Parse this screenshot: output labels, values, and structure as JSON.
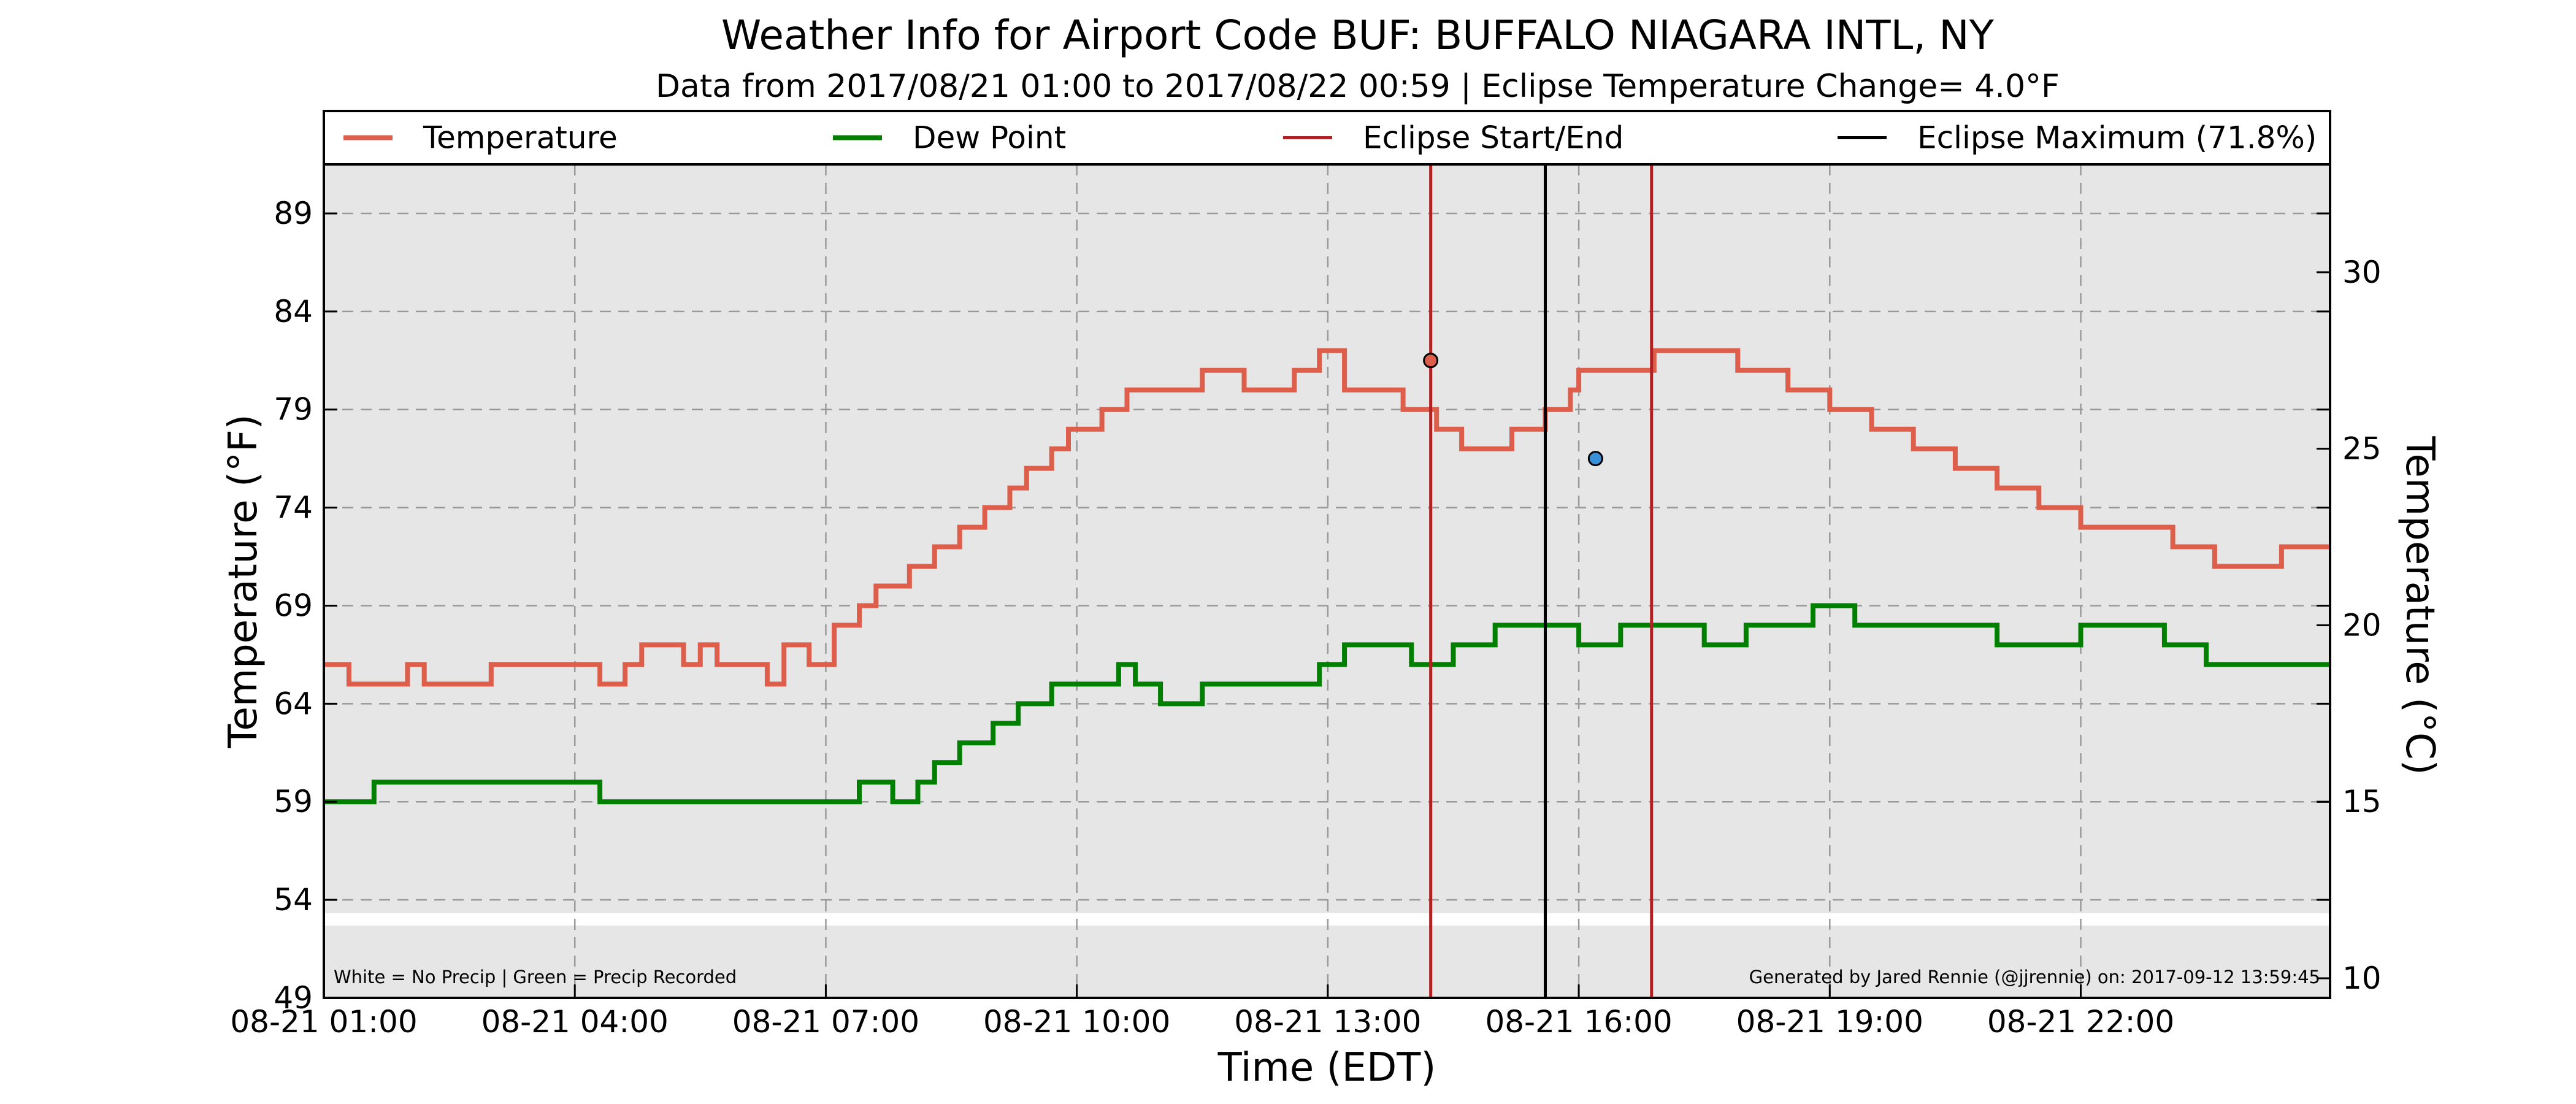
{
  "chart_data": {
    "type": "line",
    "title": "Weather Info for Airport Code BUF: BUFFALO NIAGARA INTL, NY",
    "subtitle": "Data from 2017/08/21 01:00 to 2017/08/22 00:59 | Eclipse Temperature Change= 4.0°F",
    "xlabel": "Time (EDT)",
    "ylabel_left": "Temperature (°F)",
    "ylabel_right": "Temperature (°C)",
    "x_unit": "hours",
    "xlim": [
      1.0,
      24.98
    ],
    "ylim": [
      49,
      91.5
    ],
    "x_ticks": [
      {
        "x": 1,
        "label": "08-21 01:00"
      },
      {
        "x": 4,
        "label": "08-21 04:00"
      },
      {
        "x": 7,
        "label": "08-21 07:00"
      },
      {
        "x": 10,
        "label": "08-21 10:00"
      },
      {
        "x": 13,
        "label": "08-21 13:00"
      },
      {
        "x": 16,
        "label": "08-21 16:00"
      },
      {
        "x": 19,
        "label": "08-21 19:00"
      },
      {
        "x": 22,
        "label": "08-21 22:00"
      }
    ],
    "y_ticks_left": [
      49,
      54,
      59,
      64,
      69,
      74,
      79,
      84,
      89
    ],
    "y_ticks_right": [
      10,
      15,
      20,
      25,
      30
    ],
    "grid": true,
    "legend_position": "top",
    "series": [
      {
        "name": "Temperature",
        "color": "#dc5e4b",
        "points": [
          [
            1.0,
            66
          ],
          [
            1.3,
            65
          ],
          [
            2.0,
            66
          ],
          [
            2.2,
            65
          ],
          [
            3.0,
            66
          ],
          [
            4.2,
            66
          ],
          [
            4.3,
            65
          ],
          [
            4.6,
            66
          ],
          [
            4.8,
            67
          ],
          [
            5.3,
            66
          ],
          [
            5.5,
            67
          ],
          [
            5.7,
            66
          ],
          [
            6.3,
            65
          ],
          [
            6.5,
            67
          ],
          [
            6.8,
            66
          ],
          [
            7.1,
            68
          ],
          [
            7.4,
            69
          ],
          [
            7.6,
            70
          ],
          [
            8.0,
            71
          ],
          [
            8.3,
            72
          ],
          [
            8.6,
            73
          ],
          [
            8.9,
            74
          ],
          [
            9.2,
            75
          ],
          [
            9.4,
            76
          ],
          [
            9.7,
            77
          ],
          [
            9.9,
            78
          ],
          [
            10.3,
            79
          ],
          [
            10.6,
            80
          ],
          [
            11.0,
            80
          ],
          [
            11.5,
            81
          ],
          [
            12.0,
            80
          ],
          [
            12.6,
            81
          ],
          [
            12.9,
            82
          ],
          [
            13.2,
            80
          ],
          [
            13.6,
            80
          ],
          [
            13.9,
            79
          ],
          [
            14.3,
            78
          ],
          [
            14.6,
            77
          ],
          [
            15.0,
            77
          ],
          [
            15.2,
            78
          ],
          [
            15.6,
            79
          ],
          [
            15.9,
            80
          ],
          [
            16.0,
            81
          ],
          [
            16.5,
            81
          ],
          [
            16.9,
            82
          ],
          [
            17.5,
            82
          ],
          [
            17.9,
            81
          ],
          [
            18.5,
            80
          ],
          [
            19.0,
            79
          ],
          [
            19.5,
            78
          ],
          [
            20.0,
            77
          ],
          [
            20.5,
            76
          ],
          [
            21.0,
            75
          ],
          [
            21.5,
            74
          ],
          [
            22.0,
            73
          ],
          [
            22.6,
            73
          ],
          [
            23.1,
            72
          ],
          [
            23.6,
            71
          ],
          [
            24.4,
            72
          ],
          [
            24.98,
            72
          ]
        ]
      },
      {
        "name": "Dew Point",
        "color": "#007f00",
        "points": [
          [
            1.0,
            59
          ],
          [
            1.6,
            60
          ],
          [
            4.2,
            60
          ],
          [
            4.3,
            59
          ],
          [
            7.0,
            59
          ],
          [
            7.4,
            60
          ],
          [
            7.8,
            59
          ],
          [
            8.1,
            60
          ],
          [
            8.3,
            61
          ],
          [
            8.6,
            62
          ],
          [
            9.0,
            63
          ],
          [
            9.3,
            64
          ],
          [
            9.7,
            65
          ],
          [
            10.0,
            65
          ],
          [
            10.5,
            66
          ],
          [
            10.7,
            65
          ],
          [
            11.0,
            64
          ],
          [
            11.5,
            65
          ],
          [
            12.5,
            65
          ],
          [
            12.9,
            66
          ],
          [
            13.2,
            67
          ],
          [
            14.0,
            66
          ],
          [
            14.5,
            67
          ],
          [
            15.0,
            68
          ],
          [
            15.5,
            68
          ],
          [
            16.0,
            67
          ],
          [
            16.5,
            68
          ],
          [
            17.0,
            68
          ],
          [
            17.5,
            67
          ],
          [
            18.0,
            68
          ],
          [
            18.8,
            69
          ],
          [
            19.3,
            68
          ],
          [
            20.0,
            68
          ],
          [
            21.0,
            67
          ],
          [
            22.0,
            68
          ],
          [
            23.0,
            67
          ],
          [
            23.5,
            66
          ],
          [
            24.98,
            66
          ]
        ]
      }
    ],
    "eclipse_start_end": {
      "name": "Eclipse Start/End",
      "color": "#b22222",
      "x": [
        14.23,
        16.87
      ]
    },
    "eclipse_maximum": {
      "name": "Eclipse Maximum (71.8%)",
      "color": "#000000",
      "x": 15.6
    },
    "markers": [
      {
        "x": 14.23,
        "y": 81.5,
        "color": "#dc5e4b"
      },
      {
        "x": 16.2,
        "y": 76.5,
        "color": "#3a8fd9"
      }
    ],
    "precip_band": {
      "y": 53,
      "label": "White = No Precip | Green = Precip Recorded"
    },
    "credit": "Generated by Jared Rennie (@jjrennie) on: 2017-09-12 13:59:45"
  }
}
